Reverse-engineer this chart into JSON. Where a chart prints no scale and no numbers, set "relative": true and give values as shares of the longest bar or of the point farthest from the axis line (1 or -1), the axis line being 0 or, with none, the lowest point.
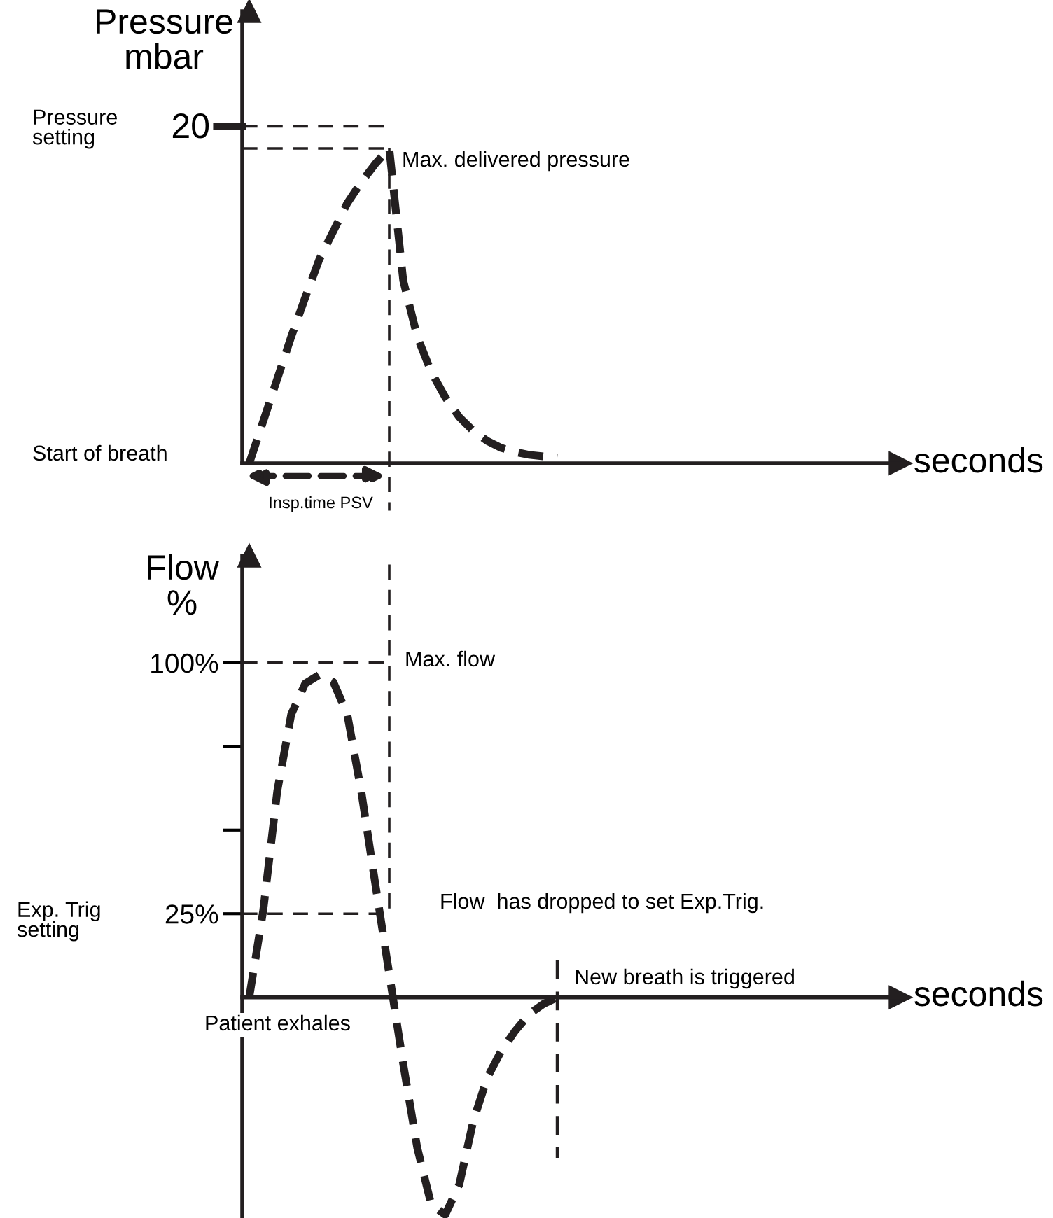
{
  "chart_data": [
    {
      "type": "line",
      "relative": true,
      "ylabel": "Pressure\nmbar",
      "xlabel": "seconds",
      "line_style": "dashed",
      "categories": [
        null,
        null,
        null,
        null,
        null,
        null,
        null,
        null,
        null,
        null,
        null,
        null,
        null,
        null,
        null,
        null,
        null,
        null,
        null,
        null,
        null,
        null,
        null,
        null,
        null,
        null,
        null,
        null,
        null,
        null,
        null,
        null,
        null,
        null,
        null,
        null,
        null,
        null,
        null,
        null,
        null,
        null,
        null,
        null,
        null,
        null,
        null
      ],
      "series": [
        {
          "color": "#231f20",
          "values": [
            0,
            0.134,
            0.268,
            0.402,
            0.527,
            0.647,
            0.737,
            0.826,
            0.893,
            0.951,
            1.0,
            0.58,
            0.402,
            0.29,
            0.21,
            0.147,
            0.103,
            0.071,
            0.049,
            0.036,
            0.027,
            0.022,
            0.018,
            null,
            null,
            null,
            null,
            null,
            null,
            null,
            null,
            null,
            null,
            null,
            null,
            null,
            null,
            null,
            null,
            null,
            null,
            null,
            null,
            null,
            null,
            null,
            null
          ]
        }
      ],
      "ref_lines": [
        {
          "axis": "y",
          "value": 1.07,
          "line_style": "dashed",
          "color": "#231f20"
        },
        {
          "axis": "y",
          "value": 1.0,
          "line_style": "dashed",
          "color": "#231f20"
        }
      ],
      "annotations": [
        "20",
        "Pressure\nsetting",
        "Max. delivered pressure",
        "Start of breath",
        "Insp.time PSV"
      ]
    },
    {
      "type": "line",
      "ylabel": "Flow\n%",
      "xlabel": "seconds",
      "line_style": "dashed",
      "ylim": [
        -66,
        132
      ],
      "yticks": [
        {
          "value": 25,
          "label": "25%"
        },
        {
          "value": 50,
          "label": null
        },
        {
          "value": 75,
          "label": null
        },
        {
          "value": 100,
          "label": "100%"
        }
      ],
      "categories": [
        null,
        null,
        null,
        null,
        null,
        null,
        null,
        null,
        null,
        null,
        null,
        null,
        null,
        null,
        null,
        null,
        null,
        null,
        null,
        null,
        null,
        null,
        null,
        null,
        null,
        null,
        null,
        null,
        null,
        null,
        null,
        null,
        null,
        null,
        null,
        null,
        null,
        null,
        null,
        null,
        null,
        null,
        null,
        null,
        null,
        null,
        null
      ],
      "series": [
        {
          "color": "#231f20",
          "values": [
            0,
            26,
            61.6,
            84.6,
            93.8,
            96.4,
            94.3,
            84.6,
            61.6,
            34,
            7,
            -20,
            -45,
            -62,
            -65,
            -56,
            -37,
            -24,
            -16,
            -10,
            -5,
            -2,
            0,
            null,
            null,
            null,
            null,
            null,
            null,
            null,
            null,
            null,
            null,
            null,
            null,
            null,
            null,
            null,
            null,
            null,
            null,
            null,
            null,
            null,
            null,
            null,
            null
          ]
        }
      ],
      "ref_lines": [
        {
          "axis": "y",
          "value": 100,
          "line_style": "dashed",
          "color": "#231f20"
        },
        {
          "axis": "y",
          "value": 25,
          "line_style": "dashed",
          "color": "#231f20"
        }
      ],
      "annotations": [
        "Max. flow",
        "Exp. Trig\nsetting",
        "Flow  has dropped to set Exp.Trig.",
        "New breath is triggered",
        "Patient exhales"
      ]
    }
  ]
}
